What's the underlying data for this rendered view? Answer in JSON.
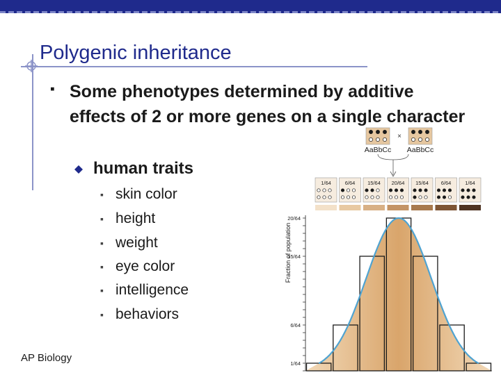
{
  "slide": {
    "title": "Polygenic inheritance",
    "bullet_l1": "Some phenotypes determined by additive effects of 2 or more genes on a single character",
    "bullet_l2": "human traits",
    "bullet_l3": [
      "skin color",
      "height",
      "weight",
      "eye color",
      "intelligence",
      "behaviors"
    ],
    "footer": "AP Biology",
    "bullet_glyphs": {
      "l1": "▪",
      "l3": "▪"
    },
    "colors": {
      "title": "#1f2a8c",
      "topbar": "#1f2a8c",
      "curve": "#4fa3d1",
      "histogram_fill": "#e3b886"
    }
  },
  "figure": {
    "parent_genotypes": [
      "AaBbCc",
      "AaBbCc"
    ],
    "cross_symbol": "×",
    "parent_dots": [
      3,
      3
    ],
    "offspring_fractions": [
      "1/64",
      "6/64",
      "15/64",
      "20/64",
      "15/64",
      "6/64",
      "1/64"
    ],
    "offspring_dark_dots": [
      0,
      1,
      2,
      3,
      4,
      5,
      6
    ],
    "offspring_shades": [
      "#f3e1c9",
      "#e8c9a2",
      "#d8b085",
      "#c49466",
      "#a87a4e",
      "#7e5535",
      "#4e3322"
    ],
    "ylabel": "Fraction of population",
    "y_ticks": [
      "20/64",
      "15/64",
      "6/64",
      "1/64"
    ]
  },
  "chart_data": {
    "type": "bar",
    "categories": [
      "0",
      "1",
      "2",
      "3",
      "4",
      "5",
      "6"
    ],
    "values": [
      1,
      6,
      15,
      20,
      15,
      6,
      1
    ],
    "title": "",
    "xlabel": "",
    "ylabel": "Fraction of population",
    "ylim": [
      0,
      20
    ],
    "y_tick_labels": [
      "1/64",
      "6/64",
      "15/64",
      "20/64"
    ]
  }
}
